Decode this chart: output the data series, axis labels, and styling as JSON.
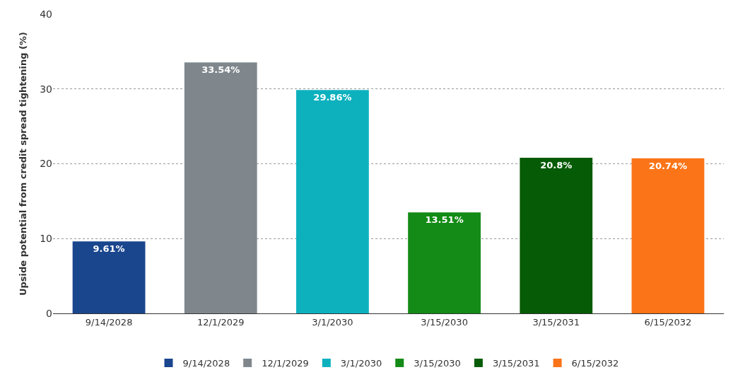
{
  "chart_data": {
    "type": "bar",
    "ylabel": "Upside potential from credit spread tightening (%)",
    "categories": [
      "9/14/2028",
      "12/1/2029",
      "3/1/2030",
      "3/15/2030",
      "3/15/2031",
      "6/15/2032"
    ],
    "series": [
      {
        "name": "9/14/2028",
        "color": "#1a468e",
        "values": [
          9.61,
          null,
          null,
          null,
          null,
          null
        ],
        "value_labels": [
          "9.61%",
          null,
          null,
          null,
          null,
          null
        ]
      },
      {
        "name": "12/1/2029",
        "color": "#7f878d",
        "values": [
          null,
          33.54,
          null,
          null,
          null,
          null
        ],
        "value_labels": [
          null,
          "33.54%",
          null,
          null,
          null,
          null
        ]
      },
      {
        "name": "3/1/2030",
        "color": "#0db1be",
        "values": [
          null,
          null,
          29.86,
          null,
          null,
          null
        ],
        "value_labels": [
          null,
          null,
          "29.86%",
          null,
          null,
          null
        ]
      },
      {
        "name": "3/15/2030",
        "color": "#138b16",
        "values": [
          null,
          null,
          null,
          13.51,
          null,
          null
        ],
        "value_labels": [
          null,
          null,
          null,
          "13.51%",
          null,
          null
        ]
      },
      {
        "name": "3/15/2031",
        "color": "#065b06",
        "values": [
          null,
          null,
          null,
          null,
          20.8,
          null
        ],
        "value_labels": [
          null,
          null,
          null,
          null,
          "20.8%",
          null
        ]
      },
      {
        "name": "6/15/2032",
        "color": "#fb7417",
        "values": [
          null,
          null,
          null,
          null,
          null,
          20.74
        ],
        "value_labels": [
          null,
          null,
          null,
          null,
          null,
          "20.74%"
        ]
      }
    ],
    "ylim": [
      0,
      40
    ],
    "yticks": [
      0,
      10,
      20,
      30,
      40
    ],
    "grid": "y",
    "legend": "bottom"
  }
}
